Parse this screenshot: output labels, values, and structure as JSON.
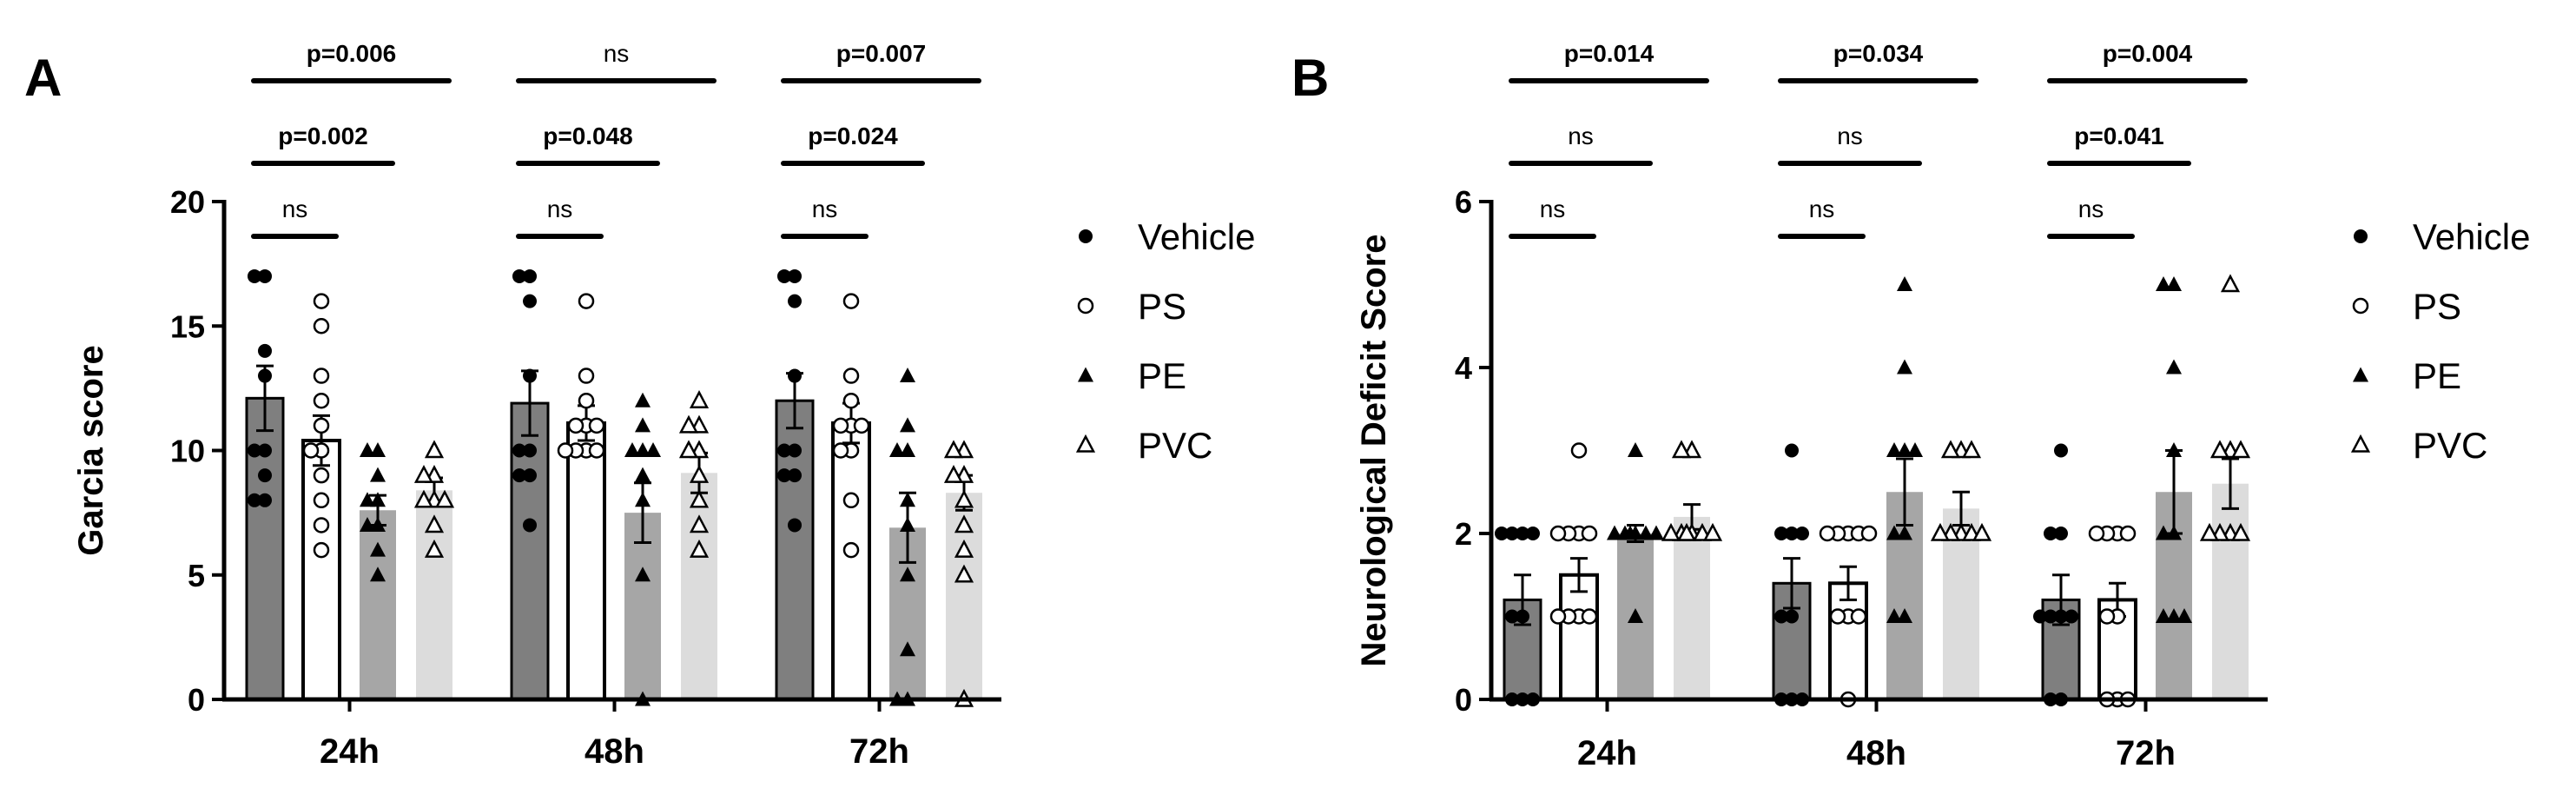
{
  "colors": {
    "vehicle": "#7f7f7f",
    "ps": "#ffffff",
    "pe": "#a6a6a6",
    "pvc": "#dcdcdc",
    "axis": "#000000"
  },
  "legend": [
    {
      "label": "Vehicle",
      "marker": "filled-circle"
    },
    {
      "label": "PS",
      "marker": "open-circle"
    },
    {
      "label": "PE",
      "marker": "filled-triangle"
    },
    {
      "label": "PVC",
      "marker": "open-triangle"
    }
  ],
  "chart_data": [
    {
      "panel": "A",
      "type": "bar",
      "ylabel": "Garcia score",
      "xlabel": "",
      "ylim": [
        0,
        20
      ],
      "yticks": [
        0,
        5,
        10,
        15,
        20
      ],
      "categories": [
        "24h",
        "48h",
        "72h"
      ],
      "series": [
        {
          "name": "Vehicle",
          "values": [
            12.1,
            11.9,
            12.0
          ],
          "errors": [
            1.3,
            1.3,
            1.1
          ],
          "points": [
            [
              17,
              17,
              14,
              13,
              10,
              10,
              9,
              8,
              8
            ],
            [
              17,
              17,
              16,
              13,
              10,
              10,
              9,
              9,
              7
            ],
            [
              17,
              17,
              16,
              13,
              10,
              10,
              9,
              9,
              7
            ]
          ]
        },
        {
          "name": "PS",
          "values": [
            10.4,
            11.1,
            11.1
          ],
          "errors": [
            1.0,
            0.7,
            0.8
          ],
          "points": [
            [
              16,
              15,
              13,
              12,
              11,
              10,
              10,
              9,
              8,
              7,
              6
            ],
            [
              16,
              13,
              12,
              11,
              11,
              11,
              10,
              10,
              10,
              10
            ],
            [
              16,
              13,
              12,
              11,
              11,
              11,
              10,
              10,
              8,
              6
            ]
          ]
        },
        {
          "name": "PE",
          "values": [
            7.6,
            7.5,
            6.9
          ],
          "errors": [
            0.6,
            1.2,
            1.4
          ],
          "points": [
            [
              10,
              10,
              9,
              8,
              8,
              7,
              7,
              6,
              5
            ],
            [
              12,
              11,
              10,
              10,
              10,
              9,
              8,
              5,
              0
            ],
            [
              13,
              11,
              10,
              10,
              8,
              7,
              5,
              2,
              0,
              0
            ]
          ]
        },
        {
          "name": "PVC",
          "values": [
            8.4,
            9.1,
            8.3
          ],
          "errors": [
            0.5,
            0.8,
            0.7
          ],
          "points": [
            [
              10,
              9,
              9,
              8,
              8,
              8,
              7,
              6
            ],
            [
              12,
              11,
              11,
              10,
              10,
              9,
              8,
              7,
              6
            ],
            [
              10,
              10,
              9,
              9,
              8,
              7,
              6,
              5,
              0
            ]
          ]
        }
      ],
      "comparisons": [
        {
          "category": "24h",
          "from": "Vehicle",
          "to": "PS",
          "label": "ns"
        },
        {
          "category": "24h",
          "from": "Vehicle",
          "to": "PE",
          "label": "p=0.002"
        },
        {
          "category": "24h",
          "from": "Vehicle",
          "to": "PVC",
          "label": "p=0.006"
        },
        {
          "category": "48h",
          "from": "Vehicle",
          "to": "PS",
          "label": "ns"
        },
        {
          "category": "48h",
          "from": "Vehicle",
          "to": "PE",
          "label": "p=0.048"
        },
        {
          "category": "48h",
          "from": "Vehicle",
          "to": "PVC",
          "label": "ns"
        },
        {
          "category": "72h",
          "from": "Vehicle",
          "to": "PS",
          "label": "ns"
        },
        {
          "category": "72h",
          "from": "Vehicle",
          "to": "PE",
          "label": "p=0.024"
        },
        {
          "category": "72h",
          "from": "Vehicle",
          "to": "PVC",
          "label": "p=0.007"
        }
      ]
    },
    {
      "panel": "B",
      "type": "bar",
      "ylabel": "Neurological Deficit Score",
      "xlabel": "",
      "ylim": [
        0,
        6
      ],
      "yticks": [
        0,
        2,
        4,
        6
      ],
      "categories": [
        "24h",
        "48h",
        "72h"
      ],
      "series": [
        {
          "name": "Vehicle",
          "values": [
            1.2,
            1.4,
            1.2
          ],
          "errors": [
            0.3,
            0.3,
            0.3
          ],
          "points": [
            [
              2,
              2,
              2,
              2,
              1,
              1,
              0,
              0,
              0
            ],
            [
              3,
              2,
              2,
              2,
              1,
              1,
              0,
              0,
              0
            ],
            [
              3,
              2,
              2,
              1,
              1,
              1,
              1,
              0,
              0
            ]
          ]
        },
        {
          "name": "PS",
          "values": [
            1.5,
            1.4,
            1.2
          ],
          "errors": [
            0.2,
            0.2,
            0.2
          ],
          "points": [
            [
              3,
              2,
              2,
              2,
              2,
              1,
              1,
              1,
              1
            ],
            [
              2,
              2,
              2,
              2,
              2,
              1,
              1,
              1,
              0
            ],
            [
              2,
              2,
              2,
              2,
              1,
              1,
              0,
              0,
              0
            ]
          ]
        },
        {
          "name": "PE",
          "values": [
            2.0,
            2.5,
            2.5
          ],
          "errors": [
            0.1,
            0.4,
            0.5
          ],
          "points": [
            [
              3,
              2,
              2,
              2,
              2,
              2,
              2,
              1
            ],
            [
              5,
              4,
              3,
              3,
              3,
              2,
              2,
              1,
              1
            ],
            [
              5,
              5,
              4,
              3,
              2,
              2,
              1,
              1,
              1
            ]
          ]
        },
        {
          "name": "PVC",
          "values": [
            2.2,
            2.3,
            2.6
          ],
          "errors": [
            0.15,
            0.2,
            0.3
          ],
          "points": [
            [
              3,
              3,
              2,
              2,
              2,
              2,
              2,
              2
            ],
            [
              3,
              3,
              3,
              2,
              2,
              2,
              2,
              2
            ],
            [
              5,
              3,
              3,
              3,
              2,
              2,
              2,
              2
            ]
          ]
        }
      ],
      "comparisons": [
        {
          "category": "24h",
          "from": "Vehicle",
          "to": "PS",
          "label": "ns"
        },
        {
          "category": "24h",
          "from": "Vehicle",
          "to": "PE",
          "label": "ns"
        },
        {
          "category": "24h",
          "from": "Vehicle",
          "to": "PVC",
          "label": "p=0.014"
        },
        {
          "category": "48h",
          "from": "Vehicle",
          "to": "PS",
          "label": "ns"
        },
        {
          "category": "48h",
          "from": "Vehicle",
          "to": "PE",
          "label": "ns"
        },
        {
          "category": "48h",
          "from": "Vehicle",
          "to": "PVC",
          "label": "p=0.034"
        },
        {
          "category": "72h",
          "from": "Vehicle",
          "to": "PS",
          "label": "ns"
        },
        {
          "category": "72h",
          "from": "Vehicle",
          "to": "PE",
          "label": "p=0.041"
        },
        {
          "category": "72h",
          "from": "Vehicle",
          "to": "PVC",
          "label": "p=0.004"
        }
      ]
    }
  ]
}
